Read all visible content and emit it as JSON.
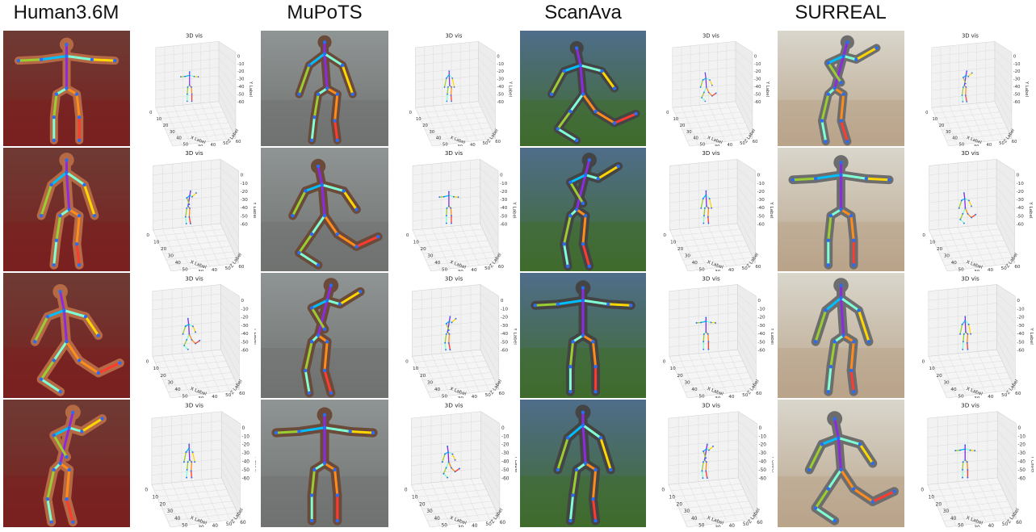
{
  "datasets": [
    {
      "name": "Human3.6M",
      "bg_top": "#6e3b34",
      "bg_bottom": "#7a1f1f",
      "skin": "#b56a45"
    },
    {
      "name": "MuPoTS",
      "bg_top": "#8f9494",
      "bg_bottom": "#6f7270",
      "skin": "#6b4a3a"
    },
    {
      "name": "ScanAva",
      "bg_top": "#4f6d8a",
      "bg_bottom": "#3f6b2c",
      "skin": "#444444"
    },
    {
      "name": "SURREAL",
      "bg_top": "#d9d6cc",
      "bg_bottom": "#b9a48a",
      "skin": "#6d6d6d"
    }
  ],
  "plot": {
    "title": "3D vis",
    "y_ticks": [
      "0",
      "-10",
      "-20",
      "-30",
      "-40",
      "-50",
      "-60"
    ],
    "x_ticks": [
      "0",
      "10",
      "20",
      "30",
      "40",
      "50",
      "60"
    ],
    "z_ticks": [
      "20",
      "30",
      "40",
      "50",
      "60"
    ],
    "x_label": "X Label",
    "y_label": "Y Label",
    "z_label": "Z Label"
  },
  "skeleton_colors": [
    "#2b6cf0",
    "#8a2be2",
    "#ff8c1a",
    "#7fffd4",
    "#ffd700",
    "#ff3b30",
    "#9acd32",
    "#00bfff"
  ]
}
